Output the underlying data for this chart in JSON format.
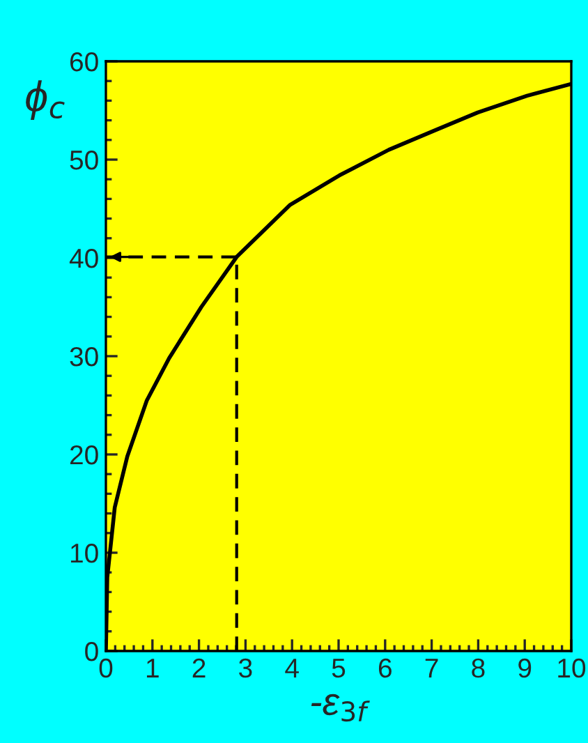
{
  "chart_data": {
    "type": "line",
    "xlabel": "-ε$_{3f}$",
    "ylabel": "ϕ$_{c}$",
    "xlim": [
      0,
      10
    ],
    "ylim": [
      0,
      60
    ],
    "xticks": [
      0,
      1,
      2,
      3,
      4,
      5,
      6,
      7,
      8,
      9,
      10
    ],
    "yticks": [
      0,
      10,
      20,
      30,
      40,
      50,
      60
    ],
    "grid": false,
    "legend": false,
    "series": [
      {
        "color": "#000000",
        "line_style": "solid",
        "x": [
          0,
          0.03,
          0.19,
          0.46,
          0.88,
          1.36,
          2.05,
          2.81,
          3.96,
          5.02,
          6.08,
          7.03,
          7.99,
          9.05,
          10
        ],
        "values": [
          0,
          7.5,
          14.6,
          19.8,
          25.5,
          29.8,
          35,
          40.1,
          45.4,
          48.4,
          51,
          52.9,
          54.8,
          56.5,
          57.7
        ]
      },
      {
        "color": "#000000",
        "line_style": "dashed",
        "x": [
          2.81,
          2.81,
          0
        ],
        "values": [
          0,
          40.1,
          40.1
        ]
      }
    ]
  }
}
